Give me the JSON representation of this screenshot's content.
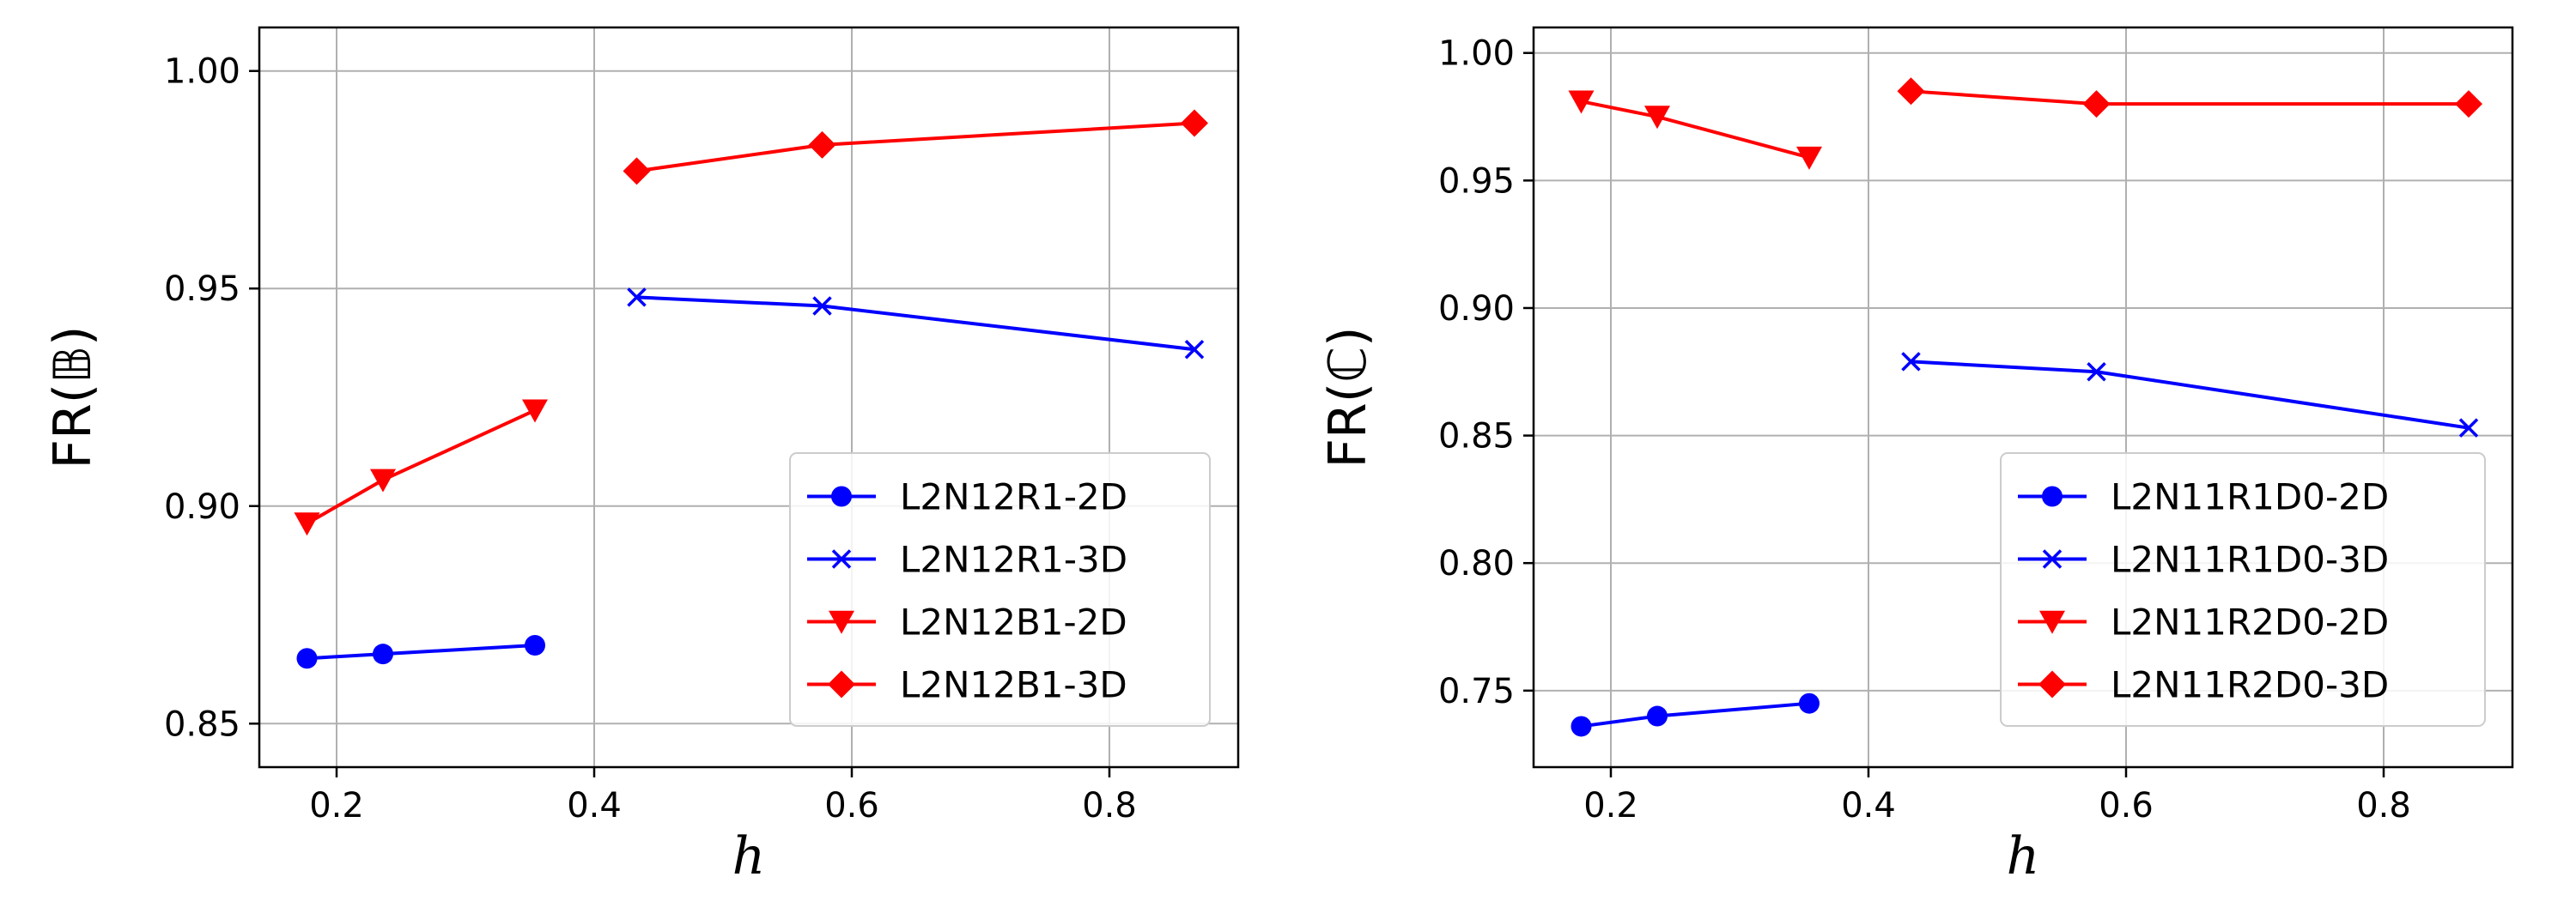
{
  "chart_data": [
    {
      "type": "line",
      "xlabel": "h",
      "ylabel": "FR(𝔹)",
      "xlim": [
        0.14,
        0.9
      ],
      "ylim": [
        0.84,
        1.01
      ],
      "xticks": [
        0.2,
        0.4,
        0.6,
        0.8
      ],
      "xtick_labels": [
        "0.2",
        "0.4",
        "0.6",
        "0.8"
      ],
      "yticks": [
        0.85,
        0.9,
        0.95,
        1.0
      ],
      "ytick_labels": [
        "0.85",
        "0.90",
        "0.95",
        "1.00"
      ],
      "grid": true,
      "legend_position": "lower-right",
      "series": [
        {
          "name": "L2N12R1-2D",
          "color": "#0000ff",
          "marker": "circle",
          "x": [
            0.177,
            0.236,
            0.354
          ],
          "y": [
            0.865,
            0.866,
            0.868
          ]
        },
        {
          "name": "L2N12R1-3D",
          "color": "#0000ff",
          "marker": "x",
          "x": [
            0.433,
            0.577,
            0.866
          ],
          "y": [
            0.948,
            0.946,
            0.936
          ]
        },
        {
          "name": "L2N12B1-2D",
          "color": "#ff0000",
          "marker": "triangle-down",
          "x": [
            0.177,
            0.236,
            0.354
          ],
          "y": [
            0.896,
            0.906,
            0.922
          ]
        },
        {
          "name": "L2N12B1-3D",
          "color": "#ff0000",
          "marker": "diamond",
          "x": [
            0.433,
            0.577,
            0.866
          ],
          "y": [
            0.977,
            0.983,
            0.988
          ]
        }
      ]
    },
    {
      "type": "line",
      "xlabel": "h",
      "ylabel": "FR(ℂ)",
      "xlim": [
        0.14,
        0.9
      ],
      "ylim": [
        0.72,
        1.01
      ],
      "xticks": [
        0.2,
        0.4,
        0.6,
        0.8
      ],
      "xtick_labels": [
        "0.2",
        "0.4",
        "0.6",
        "0.8"
      ],
      "yticks": [
        0.75,
        0.8,
        0.85,
        0.9,
        0.95,
        1.0
      ],
      "ytick_labels": [
        "0.75",
        "0.80",
        "0.85",
        "0.90",
        "0.95",
        "1.00"
      ],
      "grid": true,
      "legend_position": "lower-right",
      "series": [
        {
          "name": "L2N11R1D0-2D",
          "color": "#0000ff",
          "marker": "circle",
          "x": [
            0.177,
            0.236,
            0.354
          ],
          "y": [
            0.736,
            0.74,
            0.745
          ]
        },
        {
          "name": "L2N11R1D0-3D",
          "color": "#0000ff",
          "marker": "x",
          "x": [
            0.433,
            0.577,
            0.866
          ],
          "y": [
            0.879,
            0.875,
            0.853
          ]
        },
        {
          "name": "L2N11R2D0-2D",
          "color": "#ff0000",
          "marker": "triangle-down",
          "x": [
            0.177,
            0.236,
            0.354
          ],
          "y": [
            0.981,
            0.975,
            0.959
          ]
        },
        {
          "name": "L2N11R2D0-3D",
          "color": "#ff0000",
          "marker": "diamond",
          "x": [
            0.433,
            0.577,
            0.866
          ],
          "y": [
            0.985,
            0.98,
            0.98
          ]
        }
      ]
    }
  ]
}
